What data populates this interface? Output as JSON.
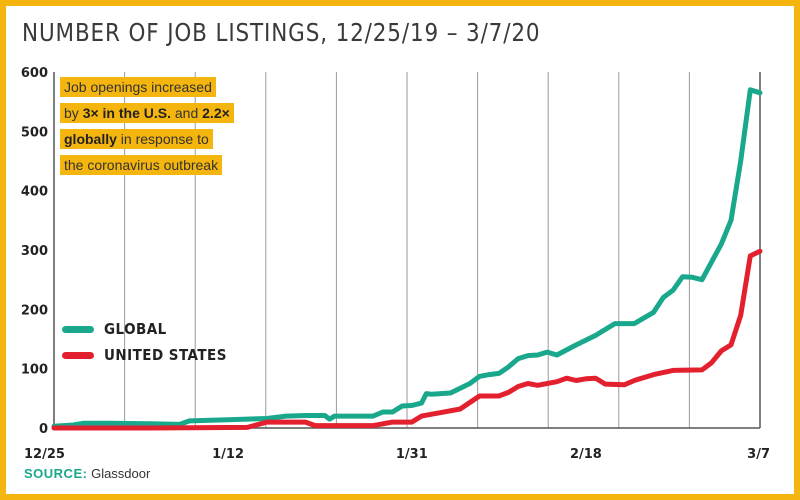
{
  "title": "NUMBER OF JOB LISTINGS, 12/25/19 – 3/7/20",
  "annotation": {
    "parts": [
      {
        "text": "Job openings increased",
        "bold": false
      },
      {
        "text": "by ",
        "bold": false
      },
      {
        "text": "3× in the U.S.",
        "bold": true
      },
      {
        "text": " and ",
        "bold": false
      },
      {
        "text": "2.2×",
        "bold": true
      },
      {
        "text": "globally",
        "bold": true
      },
      {
        "text": " in response to",
        "bold": false
      },
      {
        "text": "the coronavirus outbreak",
        "bold": false
      }
    ]
  },
  "source": {
    "label": "SOURCE:",
    "value": "Glassdoor"
  },
  "colors": {
    "global": "#1aa88c",
    "us": "#e3202e",
    "frame": "#f5b50f"
  },
  "chart_data": {
    "type": "line",
    "title": "NUMBER OF JOB LISTINGS, 12/25/19 – 3/7/20",
    "xlabel": "",
    "ylabel": "",
    "x_domain": [
      "12/25",
      "3/7"
    ],
    "x_ticks": [
      {
        "label": "12/25",
        "day": 0
      },
      {
        "label": "1/12",
        "day": 18
      },
      {
        "label": "1/31",
        "day": 37
      },
      {
        "label": "2/18",
        "day": 55
      },
      {
        "label": "3/7",
        "day": 73
      }
    ],
    "x_days_total": 73,
    "ylim": [
      0,
      600
    ],
    "y_ticks": [
      0,
      100,
      200,
      300,
      400,
      500,
      600
    ],
    "grid": {
      "vertical": true,
      "horizontal": false
    },
    "legend_position": "middle-left",
    "series": [
      {
        "name": "GLOBAL",
        "color": "#1aa88c",
        "points": [
          [
            0,
            3
          ],
          [
            2,
            5
          ],
          [
            3,
            8
          ],
          [
            6,
            8
          ],
          [
            10,
            7
          ],
          [
            13,
            6
          ],
          [
            14,
            12
          ],
          [
            18,
            14
          ],
          [
            22,
            16
          ],
          [
            24,
            20
          ],
          [
            26,
            21
          ],
          [
            28,
            21
          ],
          [
            28.5,
            15
          ],
          [
            29,
            20
          ],
          [
            33,
            20
          ],
          [
            34,
            27
          ],
          [
            35,
            27
          ],
          [
            36,
            37
          ],
          [
            37,
            38
          ],
          [
            38,
            42
          ],
          [
            38.5,
            58
          ],
          [
            39,
            57
          ],
          [
            41,
            59
          ],
          [
            42,
            67
          ],
          [
            43,
            75
          ],
          [
            44,
            87
          ],
          [
            45,
            90
          ],
          [
            46,
            92
          ],
          [
            47,
            103
          ],
          [
            48,
            117
          ],
          [
            49,
            122
          ],
          [
            50,
            123
          ],
          [
            51,
            128
          ],
          [
            52,
            123
          ],
          [
            54,
            140
          ],
          [
            56,
            156
          ],
          [
            58,
            176
          ],
          [
            60,
            176
          ],
          [
            62,
            195
          ],
          [
            63,
            220
          ],
          [
            64,
            232
          ],
          [
            65,
            255
          ],
          [
            66,
            254
          ],
          [
            67,
            250
          ],
          [
            68,
            280
          ],
          [
            69,
            310
          ],
          [
            70,
            350
          ],
          [
            71,
            450
          ],
          [
            72,
            570
          ],
          [
            73,
            565
          ]
        ]
      },
      {
        "name": "UNITED STATES",
        "color": "#e3202e",
        "points": [
          [
            0,
            0
          ],
          [
            10,
            0
          ],
          [
            20,
            1
          ],
          [
            22,
            10
          ],
          [
            26,
            10
          ],
          [
            27,
            4
          ],
          [
            31,
            4
          ],
          [
            33,
            4
          ],
          [
            35,
            10
          ],
          [
            37,
            10
          ],
          [
            38,
            20
          ],
          [
            40,
            26
          ],
          [
            42,
            32
          ],
          [
            44,
            54
          ],
          [
            46,
            54
          ],
          [
            47,
            60
          ],
          [
            48,
            70
          ],
          [
            49,
            75
          ],
          [
            50,
            72
          ],
          [
            52,
            78
          ],
          [
            53,
            84
          ],
          [
            54,
            80
          ],
          [
            55,
            83
          ],
          [
            56,
            84
          ],
          [
            57,
            74
          ],
          [
            59,
            73
          ],
          [
            60,
            80
          ],
          [
            62,
            90
          ],
          [
            64,
            97
          ],
          [
            67,
            98
          ],
          [
            68,
            110
          ],
          [
            69,
            130
          ],
          [
            70,
            140
          ],
          [
            71,
            190
          ],
          [
            72,
            290
          ],
          [
            73,
            298
          ]
        ]
      }
    ]
  }
}
